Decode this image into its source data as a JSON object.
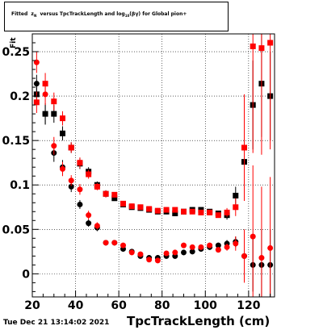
{
  "title": "Fitted  z_{N} versus TpcTrackLength and log_{10}(βγ) for Global pion+",
  "timestamp": "Tue Dec 21 13:14:02 2021",
  "chart_data": {
    "type": "scatter",
    "title": "Fitted  z_{N} versus TpcTrackLength and log_{10}(βγ) for Global pion+",
    "xlabel": "TpcTrackLength (cm)",
    "ylabel": "Fit",
    "xlim": [
      20,
      132
    ],
    "ylim": [
      -0.026,
      0.27
    ],
    "x_ticks": [
      20,
      40,
      60,
      80,
      100,
      120
    ],
    "y_ticks": [
      0,
      0.05,
      0.1,
      0.15,
      0.2,
      0.25
    ],
    "x_tick_labels": [
      "20",
      "40",
      "60",
      "80",
      "100",
      "120"
    ],
    "y_tick_labels": [
      "0",
      "0.05",
      "0.1",
      "0.15",
      "0.2",
      "0.25"
    ],
    "grid": true,
    "series": [
      {
        "color": "#000000",
        "marker": "square",
        "points": [
          [
            22,
            0.202,
            0.01
          ],
          [
            26,
            0.18,
            0.012
          ],
          [
            30,
            0.18,
            0.01
          ],
          [
            34,
            0.158,
            0.008
          ],
          [
            38,
            0.142,
            0.006
          ],
          [
            42,
            0.124,
            0.006
          ],
          [
            46,
            0.115,
            0.005
          ],
          [
            50,
            0.1,
            0.004
          ],
          [
            54,
            0.09,
            0.004
          ],
          [
            58,
            0.085,
            0.003
          ],
          [
            62,
            0.078,
            0.003
          ],
          [
            66,
            0.075,
            0.003
          ],
          [
            70,
            0.074,
            0.003
          ],
          [
            74,
            0.072,
            0.003
          ],
          [
            78,
            0.07,
            0.003
          ],
          [
            82,
            0.07,
            0.003
          ],
          [
            86,
            0.068,
            0.003
          ],
          [
            90,
            0.07,
            0.003
          ],
          [
            94,
            0.072,
            0.003
          ],
          [
            98,
            0.072,
            0.003
          ],
          [
            102,
            0.07,
            0.003
          ],
          [
            106,
            0.068,
            0.003
          ],
          [
            110,
            0.066,
            0.005
          ],
          [
            114,
            0.088,
            0.01
          ],
          [
            118,
            0.126,
            0.02
          ],
          [
            122,
            0.19,
            0.05
          ],
          [
            126,
            0.214,
            0.06
          ],
          [
            130,
            0.2,
            0.05
          ]
        ]
      },
      {
        "color": "#000000",
        "marker": "circle",
        "points": [
          [
            22,
            0.214,
            0.01
          ],
          [
            26,
            0.18,
            0.012
          ],
          [
            30,
            0.136,
            0.01
          ],
          [
            34,
            0.12,
            0.008
          ],
          [
            38,
            0.098,
            0.006
          ],
          [
            42,
            0.078,
            0.005
          ],
          [
            46,
            0.057,
            0.004
          ],
          [
            50,
            0.052,
            0.004
          ],
          [
            54,
            0.035,
            0.003
          ],
          [
            58,
            0.035,
            0.003
          ],
          [
            62,
            0.028,
            0.003
          ],
          [
            66,
            0.025,
            0.003
          ],
          [
            70,
            0.02,
            0.003
          ],
          [
            74,
            0.018,
            0.003
          ],
          [
            78,
            0.018,
            0.003
          ],
          [
            82,
            0.02,
            0.003
          ],
          [
            86,
            0.02,
            0.003
          ],
          [
            90,
            0.024,
            0.003
          ],
          [
            94,
            0.025,
            0.003
          ],
          [
            98,
            0.028,
            0.003
          ],
          [
            102,
            0.03,
            0.003
          ],
          [
            106,
            0.032,
            0.003
          ],
          [
            110,
            0.034,
            0.004
          ],
          [
            114,
            0.036,
            0.006
          ],
          [
            118,
            0.02,
            0.01
          ],
          [
            122,
            0.01,
            0.03
          ],
          [
            126,
            0.01,
            0.04
          ],
          [
            130,
            0.01,
            0.04
          ]
        ]
      },
      {
        "color": "#ff0000",
        "marker": "square",
        "points": [
          [
            22,
            0.193,
            0.012
          ],
          [
            26,
            0.214,
            0.012
          ],
          [
            30,
            0.194,
            0.01
          ],
          [
            34,
            0.175,
            0.008
          ],
          [
            38,
            0.142,
            0.006
          ],
          [
            42,
            0.125,
            0.006
          ],
          [
            46,
            0.112,
            0.005
          ],
          [
            50,
            0.098,
            0.004
          ],
          [
            54,
            0.09,
            0.004
          ],
          [
            58,
            0.089,
            0.003
          ],
          [
            62,
            0.079,
            0.003
          ],
          [
            66,
            0.076,
            0.003
          ],
          [
            70,
            0.075,
            0.003
          ],
          [
            74,
            0.073,
            0.003
          ],
          [
            78,
            0.071,
            0.003
          ],
          [
            82,
            0.072,
            0.003
          ],
          [
            86,
            0.072,
            0.003
          ],
          [
            90,
            0.07,
            0.003
          ],
          [
            94,
            0.07,
            0.003
          ],
          [
            98,
            0.069,
            0.003
          ],
          [
            102,
            0.069,
            0.003
          ],
          [
            106,
            0.066,
            0.003
          ],
          [
            110,
            0.069,
            0.005
          ],
          [
            114,
            0.075,
            0.01
          ],
          [
            118,
            0.142,
            0.06
          ],
          [
            122,
            0.256,
            0.12
          ],
          [
            126,
            0.254,
            0.12
          ],
          [
            130,
            0.26,
            0.12
          ]
        ]
      },
      {
        "color": "#ff0000",
        "marker": "circle",
        "points": [
          [
            22,
            0.238,
            0.012
          ],
          [
            26,
            0.202,
            0.012
          ],
          [
            30,
            0.144,
            0.01
          ],
          [
            34,
            0.118,
            0.008
          ],
          [
            38,
            0.105,
            0.006
          ],
          [
            42,
            0.095,
            0.006
          ],
          [
            46,
            0.066,
            0.005
          ],
          [
            50,
            0.054,
            0.004
          ],
          [
            54,
            0.035,
            0.003
          ],
          [
            58,
            0.035,
            0.003
          ],
          [
            62,
            0.032,
            0.003
          ],
          [
            66,
            0.024,
            0.003
          ],
          [
            70,
            0.022,
            0.003
          ],
          [
            74,
            0.016,
            0.003
          ],
          [
            78,
            0.015,
            0.003
          ],
          [
            82,
            0.023,
            0.003
          ],
          [
            86,
            0.024,
            0.003
          ],
          [
            90,
            0.032,
            0.003
          ],
          [
            94,
            0.03,
            0.003
          ],
          [
            98,
            0.03,
            0.003
          ],
          [
            102,
            0.032,
            0.003
          ],
          [
            106,
            0.027,
            0.003
          ],
          [
            110,
            0.03,
            0.004
          ],
          [
            114,
            0.034,
            0.008
          ],
          [
            118,
            0.02,
            0.03
          ],
          [
            122,
            0.042,
            0.08
          ],
          [
            126,
            0.018,
            0.08
          ],
          [
            130,
            0.029,
            0.08
          ]
        ]
      }
    ]
  }
}
